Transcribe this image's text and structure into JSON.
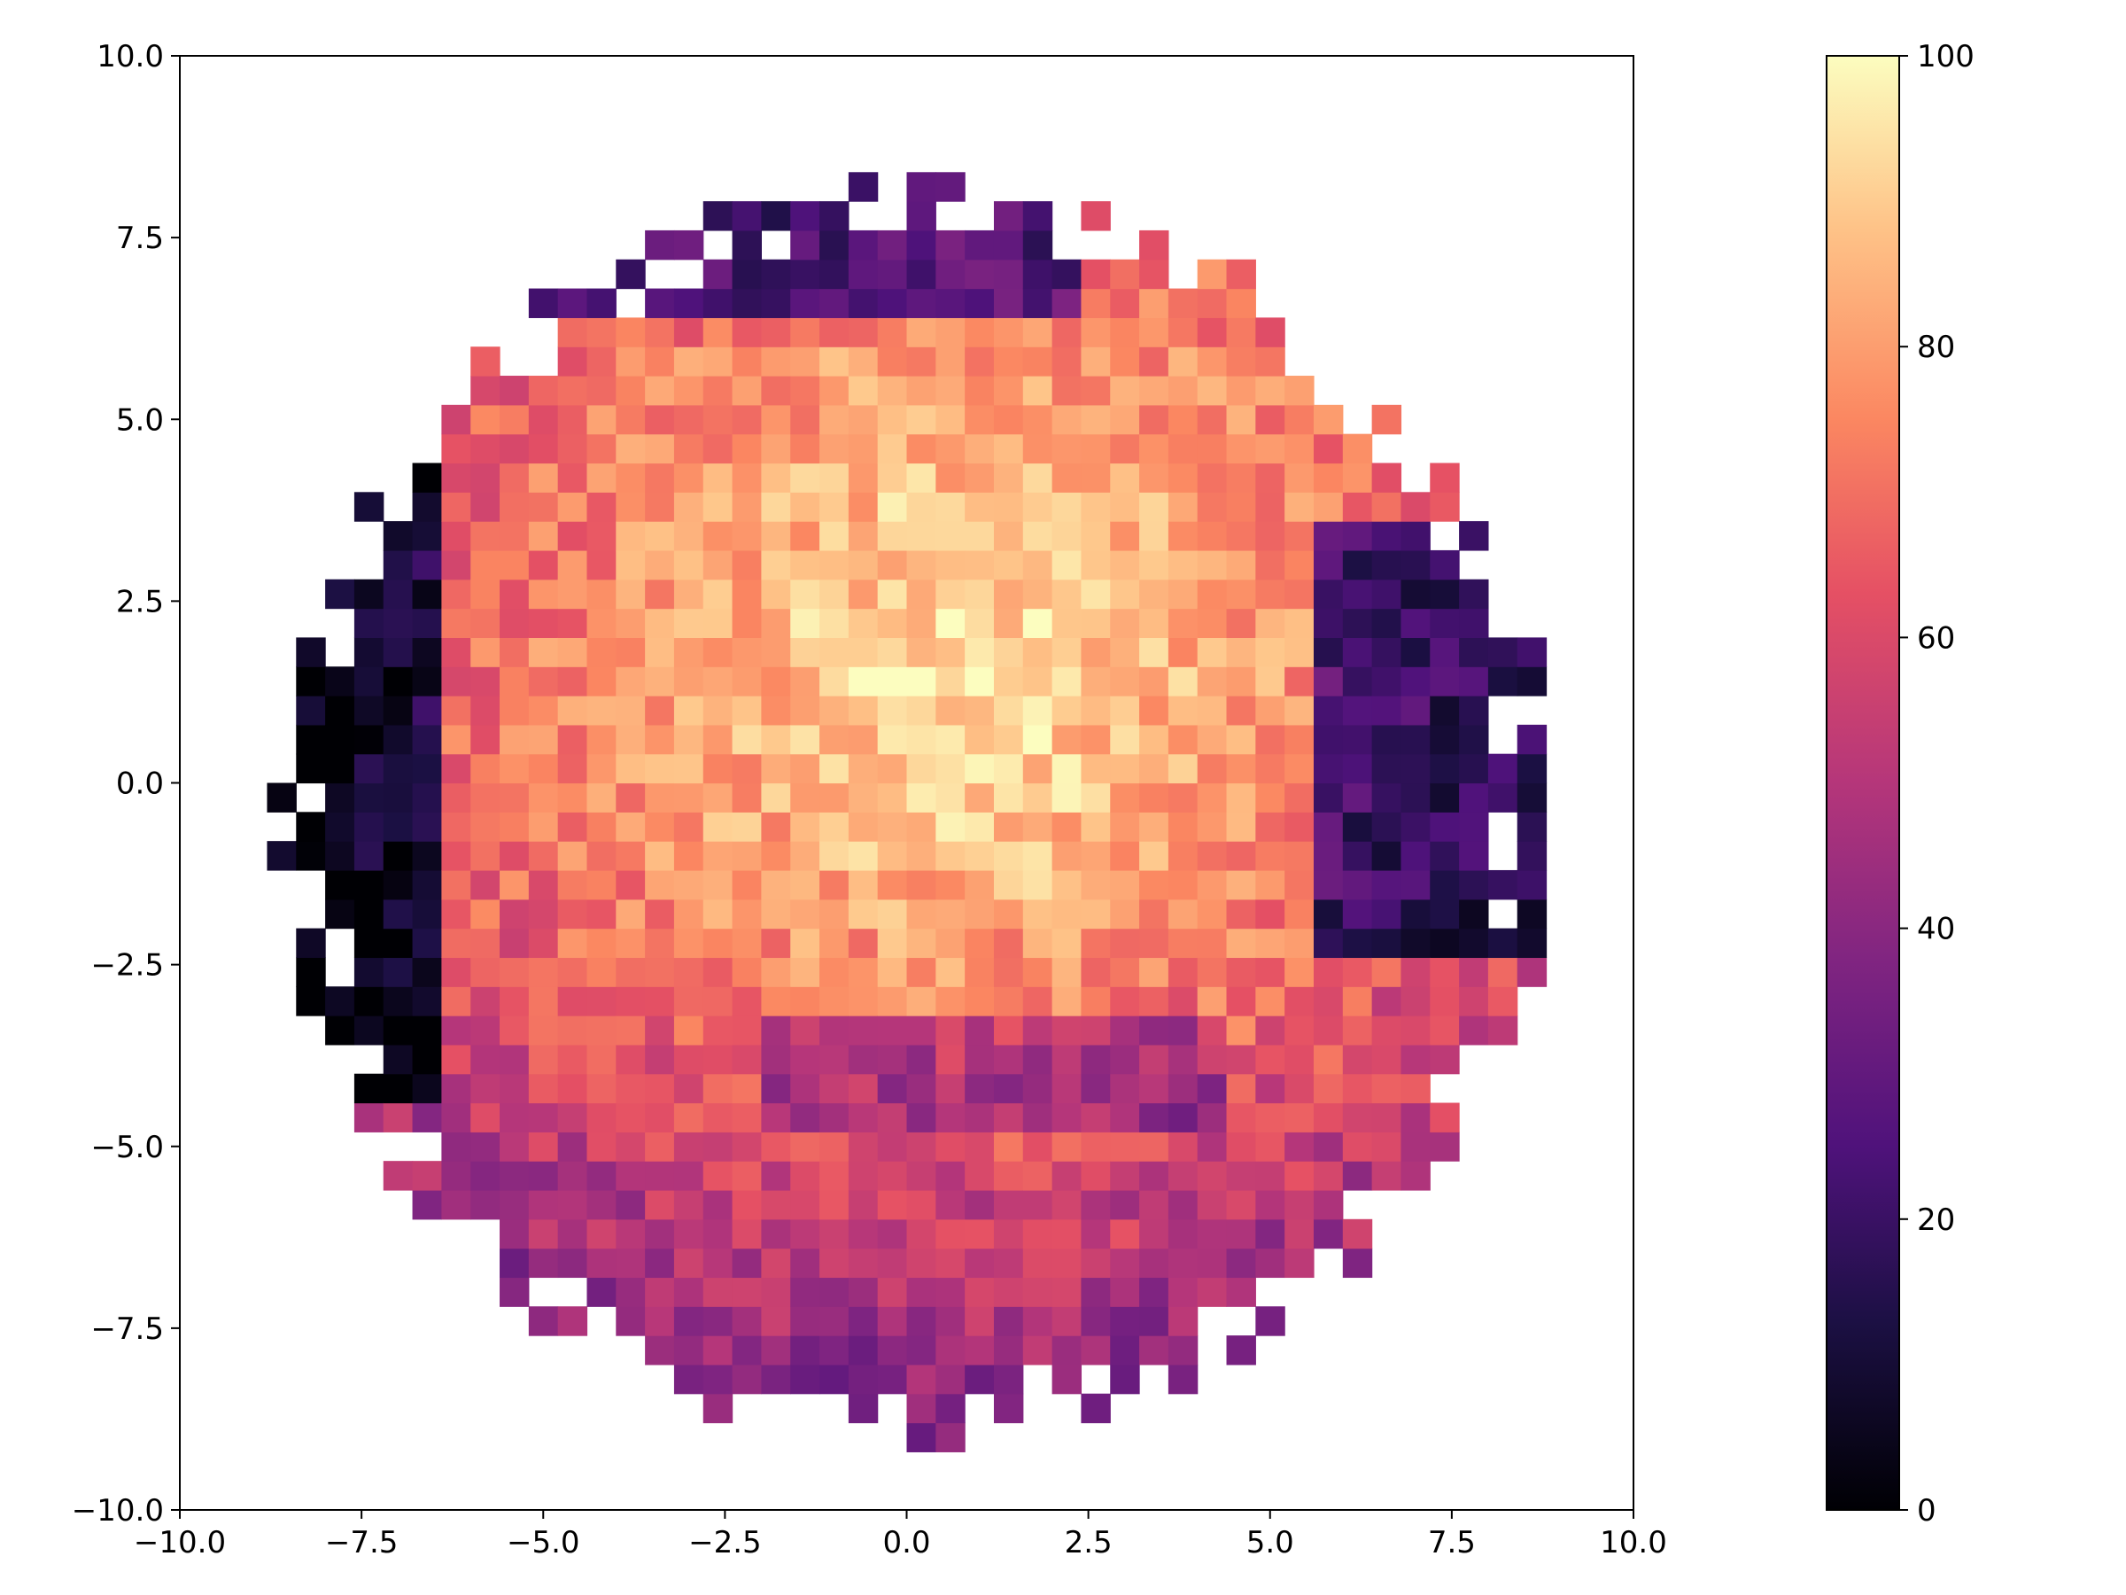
{
  "chart_data": {
    "type": "heatmap",
    "title": "",
    "xlabel": "",
    "ylabel": "",
    "xlim": [
      -10.0,
      10.0
    ],
    "ylim": [
      -10.0,
      10.0
    ],
    "x_ticks": [
      "−10.0",
      "−7.5",
      "−5.0",
      "−2.5",
      "0.0",
      "2.5",
      "5.0",
      "7.5",
      "10.0"
    ],
    "y_ticks": [
      "10.0",
      "7.5",
      "5.0",
      "2.5",
      "0.0",
      "−2.5",
      "−5.0",
      "−7.5",
      "−10.0"
    ],
    "x_tick_values": [
      -10.0,
      -7.5,
      -5.0,
      -2.5,
      0.0,
      2.5,
      5.0,
      7.5,
      10.0
    ],
    "y_tick_values": [
      10.0,
      7.5,
      5.0,
      2.5,
      0.0,
      -2.5,
      -5.0,
      -7.5,
      -10.0
    ],
    "bin_size": 0.4,
    "grid": false,
    "colormap": "magma",
    "colorbar": {
      "range": [
        0,
        100
      ],
      "ticks": [
        "0",
        "20",
        "40",
        "60",
        "80",
        "100"
      ],
      "tick_values": [
        0,
        20,
        40,
        60,
        80,
        100
      ]
    },
    "description_of_values": "Disk of binned values (~radius 8.6 centered near (0, -0.6)); bright (~95) core near (0.8, 2), mid-range oranges/pinks outward, dark (0-20) band along upper-left rim and right edge, pink/red (~60-70) lower half"
  }
}
